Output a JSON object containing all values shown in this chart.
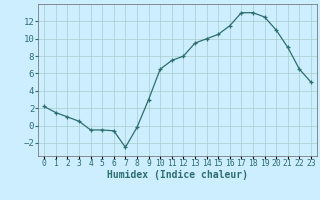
{
  "x": [
    0,
    1,
    2,
    3,
    4,
    5,
    6,
    7,
    8,
    9,
    10,
    11,
    12,
    13,
    14,
    15,
    16,
    17,
    18,
    19,
    20,
    21,
    22,
    23
  ],
  "y": [
    2.2,
    1.5,
    1.0,
    0.5,
    -0.5,
    -0.5,
    -0.6,
    -2.5,
    -0.2,
    3.0,
    6.5,
    7.5,
    8.0,
    9.5,
    10.0,
    10.5,
    11.5,
    13.0,
    13.0,
    12.5,
    11.0,
    9.0,
    6.5,
    5.0
  ],
  "line_color": "#2d6e6e",
  "bg_color": "#cceeff",
  "grid_color": "#aacccc",
  "xlabel": "Humidex (Indice chaleur)",
  "ylim": [
    -3.5,
    14.0
  ],
  "xlim": [
    -0.5,
    23.5
  ],
  "yticks": [
    -2,
    0,
    2,
    4,
    6,
    8,
    10,
    12
  ],
  "marker": "+"
}
